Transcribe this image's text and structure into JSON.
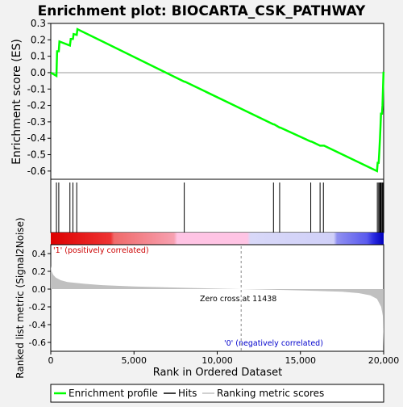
{
  "chart_data": {
    "type": "line",
    "title": "Enrichment plot: BIOCARTA_CSK_PATHWAY",
    "top_panel": {
      "ylabel": "Enrichment score (ES)",
      "ylim": [
        -0.65,
        0.3
      ],
      "yticks": [
        0.3,
        0.2,
        0.1,
        0.0,
        -0.1,
        -0.2,
        -0.3,
        -0.4,
        -0.5,
        -0.6
      ],
      "ytick_labels": [
        "0.3",
        "0.2",
        "0.1",
        "0.0",
        "-0.1",
        "-0.2",
        "-0.3",
        "-0.4",
        "-0.5",
        "-0.6"
      ],
      "series_color": "#00ff00",
      "points": [
        [
          0,
          0.0
        ],
        [
          340,
          -0.02
        ],
        [
          380,
          0.13
        ],
        [
          480,
          0.13
        ],
        [
          520,
          0.19
        ],
        [
          1150,
          0.165
        ],
        [
          1200,
          0.205
        ],
        [
          1330,
          0.205
        ],
        [
          1370,
          0.235
        ],
        [
          1560,
          0.23
        ],
        [
          1600,
          0.265
        ],
        [
          8020,
          -0.055
        ],
        [
          8060,
          -0.055
        ],
        [
          13380,
          -0.315
        ],
        [
          13420,
          -0.315
        ],
        [
          13750,
          -0.335
        ],
        [
          13790,
          -0.335
        ],
        [
          15620,
          -0.42
        ],
        [
          15660,
          -0.42
        ],
        [
          16180,
          -0.445
        ],
        [
          16220,
          -0.445
        ],
        [
          16380,
          -0.445
        ],
        [
          16420,
          -0.445
        ],
        [
          19600,
          -0.6
        ],
        [
          19640,
          -0.55
        ],
        [
          19700,
          -0.55
        ],
        [
          19740,
          -0.48
        ],
        [
          19780,
          -0.4
        ],
        [
          19810,
          -0.33
        ],
        [
          19840,
          -0.25
        ],
        [
          19900,
          -0.25
        ],
        [
          19930,
          -0.2
        ],
        [
          19960,
          -0.1
        ],
        [
          19990,
          0.0
        ],
        [
          20000,
          0.005
        ]
      ]
    },
    "hits": [
      340,
      480,
      1150,
      1330,
      1560,
      8020,
      13380,
      13750,
      15620,
      16180,
      16380,
      19620,
      19700,
      19760,
      19800,
      19840,
      19900,
      19950,
      19990
    ],
    "bottom_panel": {
      "ylabel": "Ranked list metric (Signal2Noise)",
      "xlabel": "Rank in Ordered Dataset",
      "ylim": [
        -0.7,
        0.5
      ],
      "yticks": [
        0.4,
        0.2,
        0.0,
        -0.2,
        -0.4,
        -0.6
      ],
      "ytick_labels": [
        "0.4",
        "0.2",
        "0.0",
        "-0.2",
        "-0.4",
        "-0.6"
      ],
      "xlim": [
        0,
        20000
      ],
      "xticks": [
        0,
        5000,
        10000,
        15000,
        20000
      ],
      "xtick_labels": [
        "0",
        "5,000",
        "10,000",
        "15,000",
        "20,000"
      ],
      "metric_profile": [
        [
          0,
          0.26
        ],
        [
          50,
          0.2
        ],
        [
          150,
          0.16
        ],
        [
          300,
          0.13
        ],
        [
          600,
          0.1
        ],
        [
          1000,
          0.08
        ],
        [
          2000,
          0.06
        ],
        [
          3000,
          0.045
        ],
        [
          5000,
          0.03
        ],
        [
          8000,
          0.015
        ],
        [
          11438,
          0.0
        ],
        [
          14000,
          -0.01
        ],
        [
          16000,
          -0.02
        ],
        [
          17500,
          -0.03
        ],
        [
          18500,
          -0.045
        ],
        [
          19200,
          -0.07
        ],
        [
          19600,
          -0.11
        ],
        [
          19850,
          -0.2
        ],
        [
          19950,
          -0.3
        ],
        [
          20000,
          -0.65
        ]
      ],
      "zero_cross_label": "Zero cross at 11438",
      "zero_cross": 11438,
      "positive_label": "'1' (positively correlated)",
      "negative_label": "'0' (negatively correlated)"
    },
    "colors": {
      "positive_label": "#cc0000",
      "negative_label": "#0000cc",
      "metric_fill": "#c0c0c0"
    },
    "legend": {
      "placement": "bottom",
      "entries": [
        "Enrichment profile",
        "Hits",
        "Ranking metric scores"
      ]
    }
  }
}
